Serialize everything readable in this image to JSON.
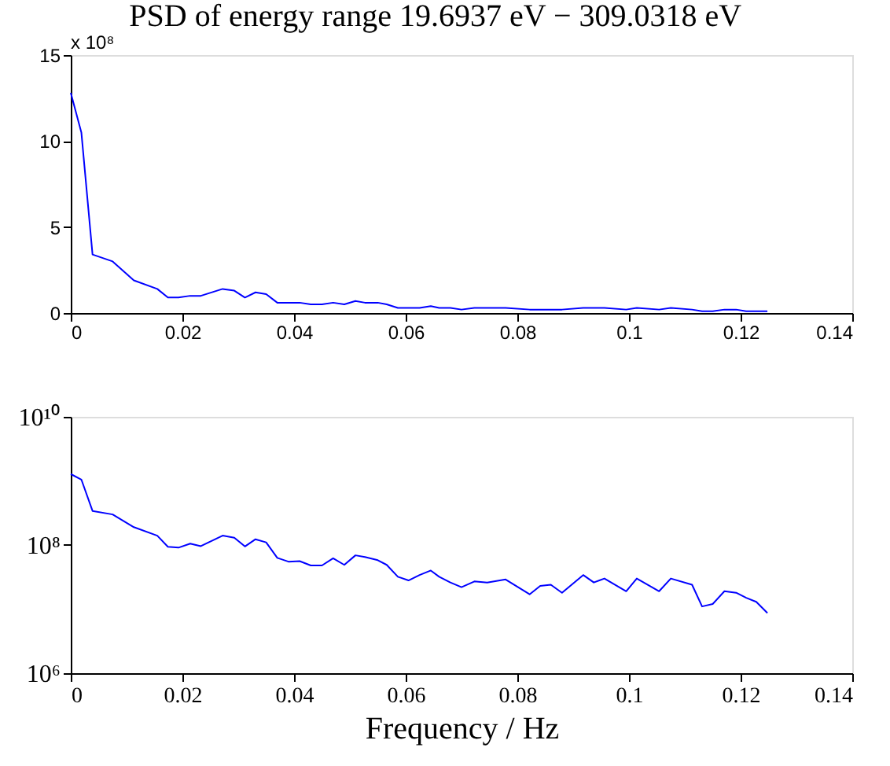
{
  "chart_data": [
    {
      "type": "line",
      "title": "PSD of energy range 19.6937 eV − 309.0318 eV",
      "annotations": [
        "x 10⁸"
      ],
      "x": [
        0,
        0.0019,
        0.0039,
        0.0075,
        0.0113,
        0.0155,
        0.0174,
        0.0193,
        0.0214,
        0.0233,
        0.0272,
        0.0293,
        0.0312,
        0.0331,
        0.035,
        0.037,
        0.039,
        0.041,
        0.043,
        0.045,
        0.047,
        0.049,
        0.051,
        0.0527,
        0.055,
        0.0566,
        0.0586,
        0.0605,
        0.0625,
        0.0645,
        0.066,
        0.068,
        0.07,
        0.0723,
        0.0746,
        0.0779,
        0.0822,
        0.0841,
        0.086,
        0.088,
        0.0918,
        0.0937,
        0.0956,
        0.0995,
        0.1014,
        0.1054,
        0.1075,
        0.1113,
        0.1131,
        0.115,
        0.1171,
        0.1192,
        0.121,
        0.1228,
        0.1248
      ],
      "series": [
        {
          "color": "#0000ff",
          "values": [
            12.8,
            10.5,
            3.4,
            3.0,
            1.9,
            1.4,
            0.9,
            0.9,
            1.0,
            1.0,
            1.4,
            1.3,
            0.9,
            1.2,
            1.1,
            0.6,
            0.6,
            0.6,
            0.5,
            0.5,
            0.6,
            0.5,
            0.7,
            0.6,
            0.6,
            0.5,
            0.3,
            0.3,
            0.3,
            0.4,
            0.3,
            0.3,
            0.2,
            0.3,
            0.3,
            0.3,
            0.2,
            0.2,
            0.2,
            0.2,
            0.3,
            0.3,
            0.3,
            0.2,
            0.3,
            0.2,
            0.3,
            0.2,
            0.1,
            0.1,
            0.2,
            0.2,
            0.1,
            0.1,
            0.1
          ]
        }
      ],
      "xlim": [
        0,
        0.14
      ],
      "xticks": [
        0,
        0.02,
        0.04,
        0.06,
        0.08,
        0.1,
        0.12,
        0.14
      ],
      "ylim": [
        0,
        15
      ],
      "yticks": [
        0,
        5,
        10,
        15
      ],
      "grid": false,
      "legend": false
    },
    {
      "type": "line",
      "xlabel": "Frequency / Hz",
      "log": "y",
      "x": [
        0,
        0.0019,
        0.0039,
        0.0075,
        0.0113,
        0.0155,
        0.0174,
        0.0193,
        0.0214,
        0.0233,
        0.0272,
        0.0293,
        0.0312,
        0.0331,
        0.035,
        0.037,
        0.039,
        0.041,
        0.043,
        0.045,
        0.047,
        0.049,
        0.051,
        0.0527,
        0.055,
        0.0566,
        0.0586,
        0.0605,
        0.0625,
        0.0645,
        0.066,
        0.068,
        0.07,
        0.0723,
        0.0746,
        0.0779,
        0.0822,
        0.0841,
        0.086,
        0.088,
        0.0918,
        0.0937,
        0.0956,
        0.0995,
        0.1014,
        0.1054,
        0.1075,
        0.1113,
        0.1131,
        0.115,
        0.1171,
        0.1192,
        0.121,
        0.1228,
        0.1248
      ],
      "series": [
        {
          "color": "#0000ff",
          "values": [
            1280000000.0,
            1050000000.0,
            340000000.0,
            300000000.0,
            190000000.0,
            140000000.0,
            94000000.0,
            91000000.0,
            105000000.0,
            96000000.0,
            140000000.0,
            130000000.0,
            95000000.0,
            123000000.0,
            110000000.0,
            63000000.0,
            55000000.0,
            56000000.0,
            48000000.0,
            48000000.0,
            62000000.0,
            49000000.0,
            69000000.0,
            65000000.0,
            58000000.0,
            49000000.0,
            32000000.0,
            28000000.0,
            34000000.0,
            40000000.0,
            32000000.0,
            26000000.0,
            22000000.0,
            27000000.0,
            26000000.0,
            29000000.0,
            17000000.0,
            23000000.0,
            24000000.0,
            18000000.0,
            34000000.0,
            26000000.0,
            30000000.0,
            19000000.0,
            30000000.0,
            19000000.0,
            30000000.0,
            24000000.0,
            11000000.0,
            12000000.0,
            19000000.0,
            18000000.0,
            15000000.0,
            13000000.0,
            8700000.0
          ]
        }
      ],
      "xlim": [
        0,
        0.14
      ],
      "xticks": [
        0,
        0.02,
        0.04,
        0.06,
        0.08,
        0.1,
        0.12,
        0.14
      ],
      "ylim": [
        1000000.0,
        10000000000.0
      ],
      "yticks": [
        {
          "value": 1000000.0,
          "label": "10⁶"
        },
        {
          "value": 100000000.0,
          "label": "10⁸"
        },
        {
          "value": 10000000000.0,
          "label": "10¹⁰"
        }
      ],
      "grid": false,
      "legend": false
    }
  ]
}
